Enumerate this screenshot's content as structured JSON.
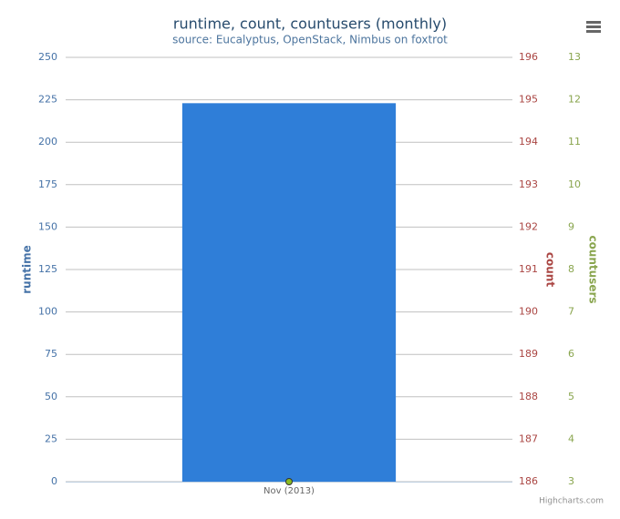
{
  "chart_data": {
    "type": "bar",
    "title": "runtime, count, countusers (monthly)",
    "subtitle": "source: Eucalyptus, OpenStack, Nimbus on foxtrot",
    "categories": [
      "Nov (2013)"
    ],
    "series": [
      {
        "name": "runtime",
        "color": "#2f7ed8",
        "values": [
          223
        ],
        "axis": "y"
      },
      {
        "name": "countusers",
        "color": "#8bbc21",
        "values": [
          3
        ],
        "axis": "y3"
      }
    ],
    "ylabel": "runtime",
    "ylim": [
      0,
      250
    ],
    "yticks": [
      0,
      25,
      50,
      75,
      100,
      125,
      150,
      175,
      200,
      225,
      250
    ],
    "y2label": "count",
    "y2lim": [
      186,
      196
    ],
    "y2ticks": [
      186,
      187,
      188,
      189,
      190,
      191,
      192,
      193,
      194,
      195,
      196
    ],
    "y3label": "countusers",
    "y3lim": [
      3,
      13
    ],
    "y3ticks": [
      3,
      4,
      5,
      6,
      7,
      8,
      9,
      10,
      11,
      12,
      13
    ],
    "axis_colors": {
      "y": "#4572a7",
      "y2": "#aa4643",
      "y3": "#89a54e"
    },
    "grid": true,
    "credits": "Highcharts.com"
  }
}
